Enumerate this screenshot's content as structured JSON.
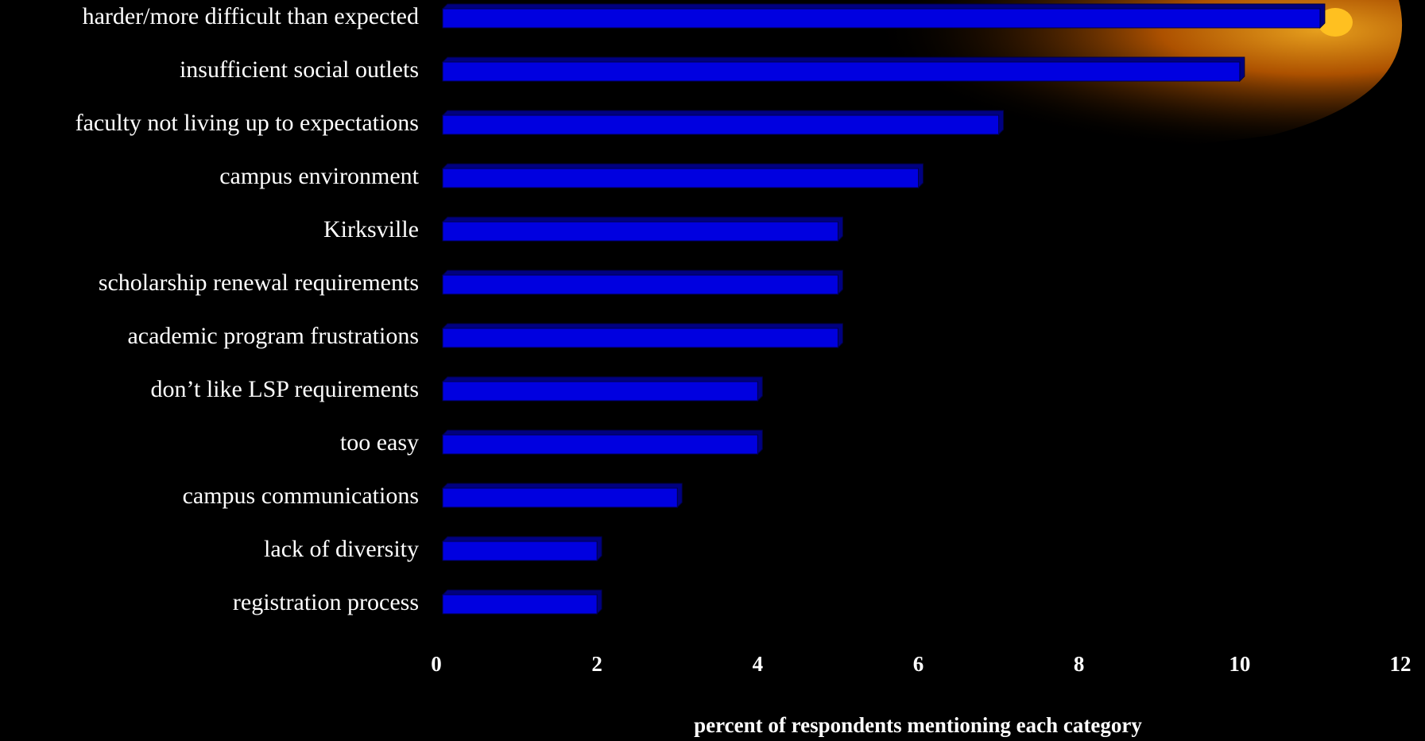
{
  "chart_data": {
    "type": "bar",
    "orientation": "horizontal",
    "x_label": "percent of respondents mentioning each category",
    "categories": [
      "harder/more difficult than expected",
      "insufficient social outlets",
      "faculty not living up to expectations",
      "campus environment",
      "Kirksville",
      "scholarship renewal requirements",
      "academic program frustrations",
      "don’t like LSP requirements",
      "too easy",
      "campus communications",
      "lack of diversity",
      "registration process"
    ],
    "values": [
      11,
      10,
      7,
      6,
      5,
      5,
      5,
      4,
      4,
      3,
      2,
      2
    ],
    "color": "#0000e0",
    "xlim": [
      0,
      12
    ],
    "xticks": [
      0,
      2,
      4,
      6,
      8,
      10,
      12
    ],
    "grid": false
  }
}
